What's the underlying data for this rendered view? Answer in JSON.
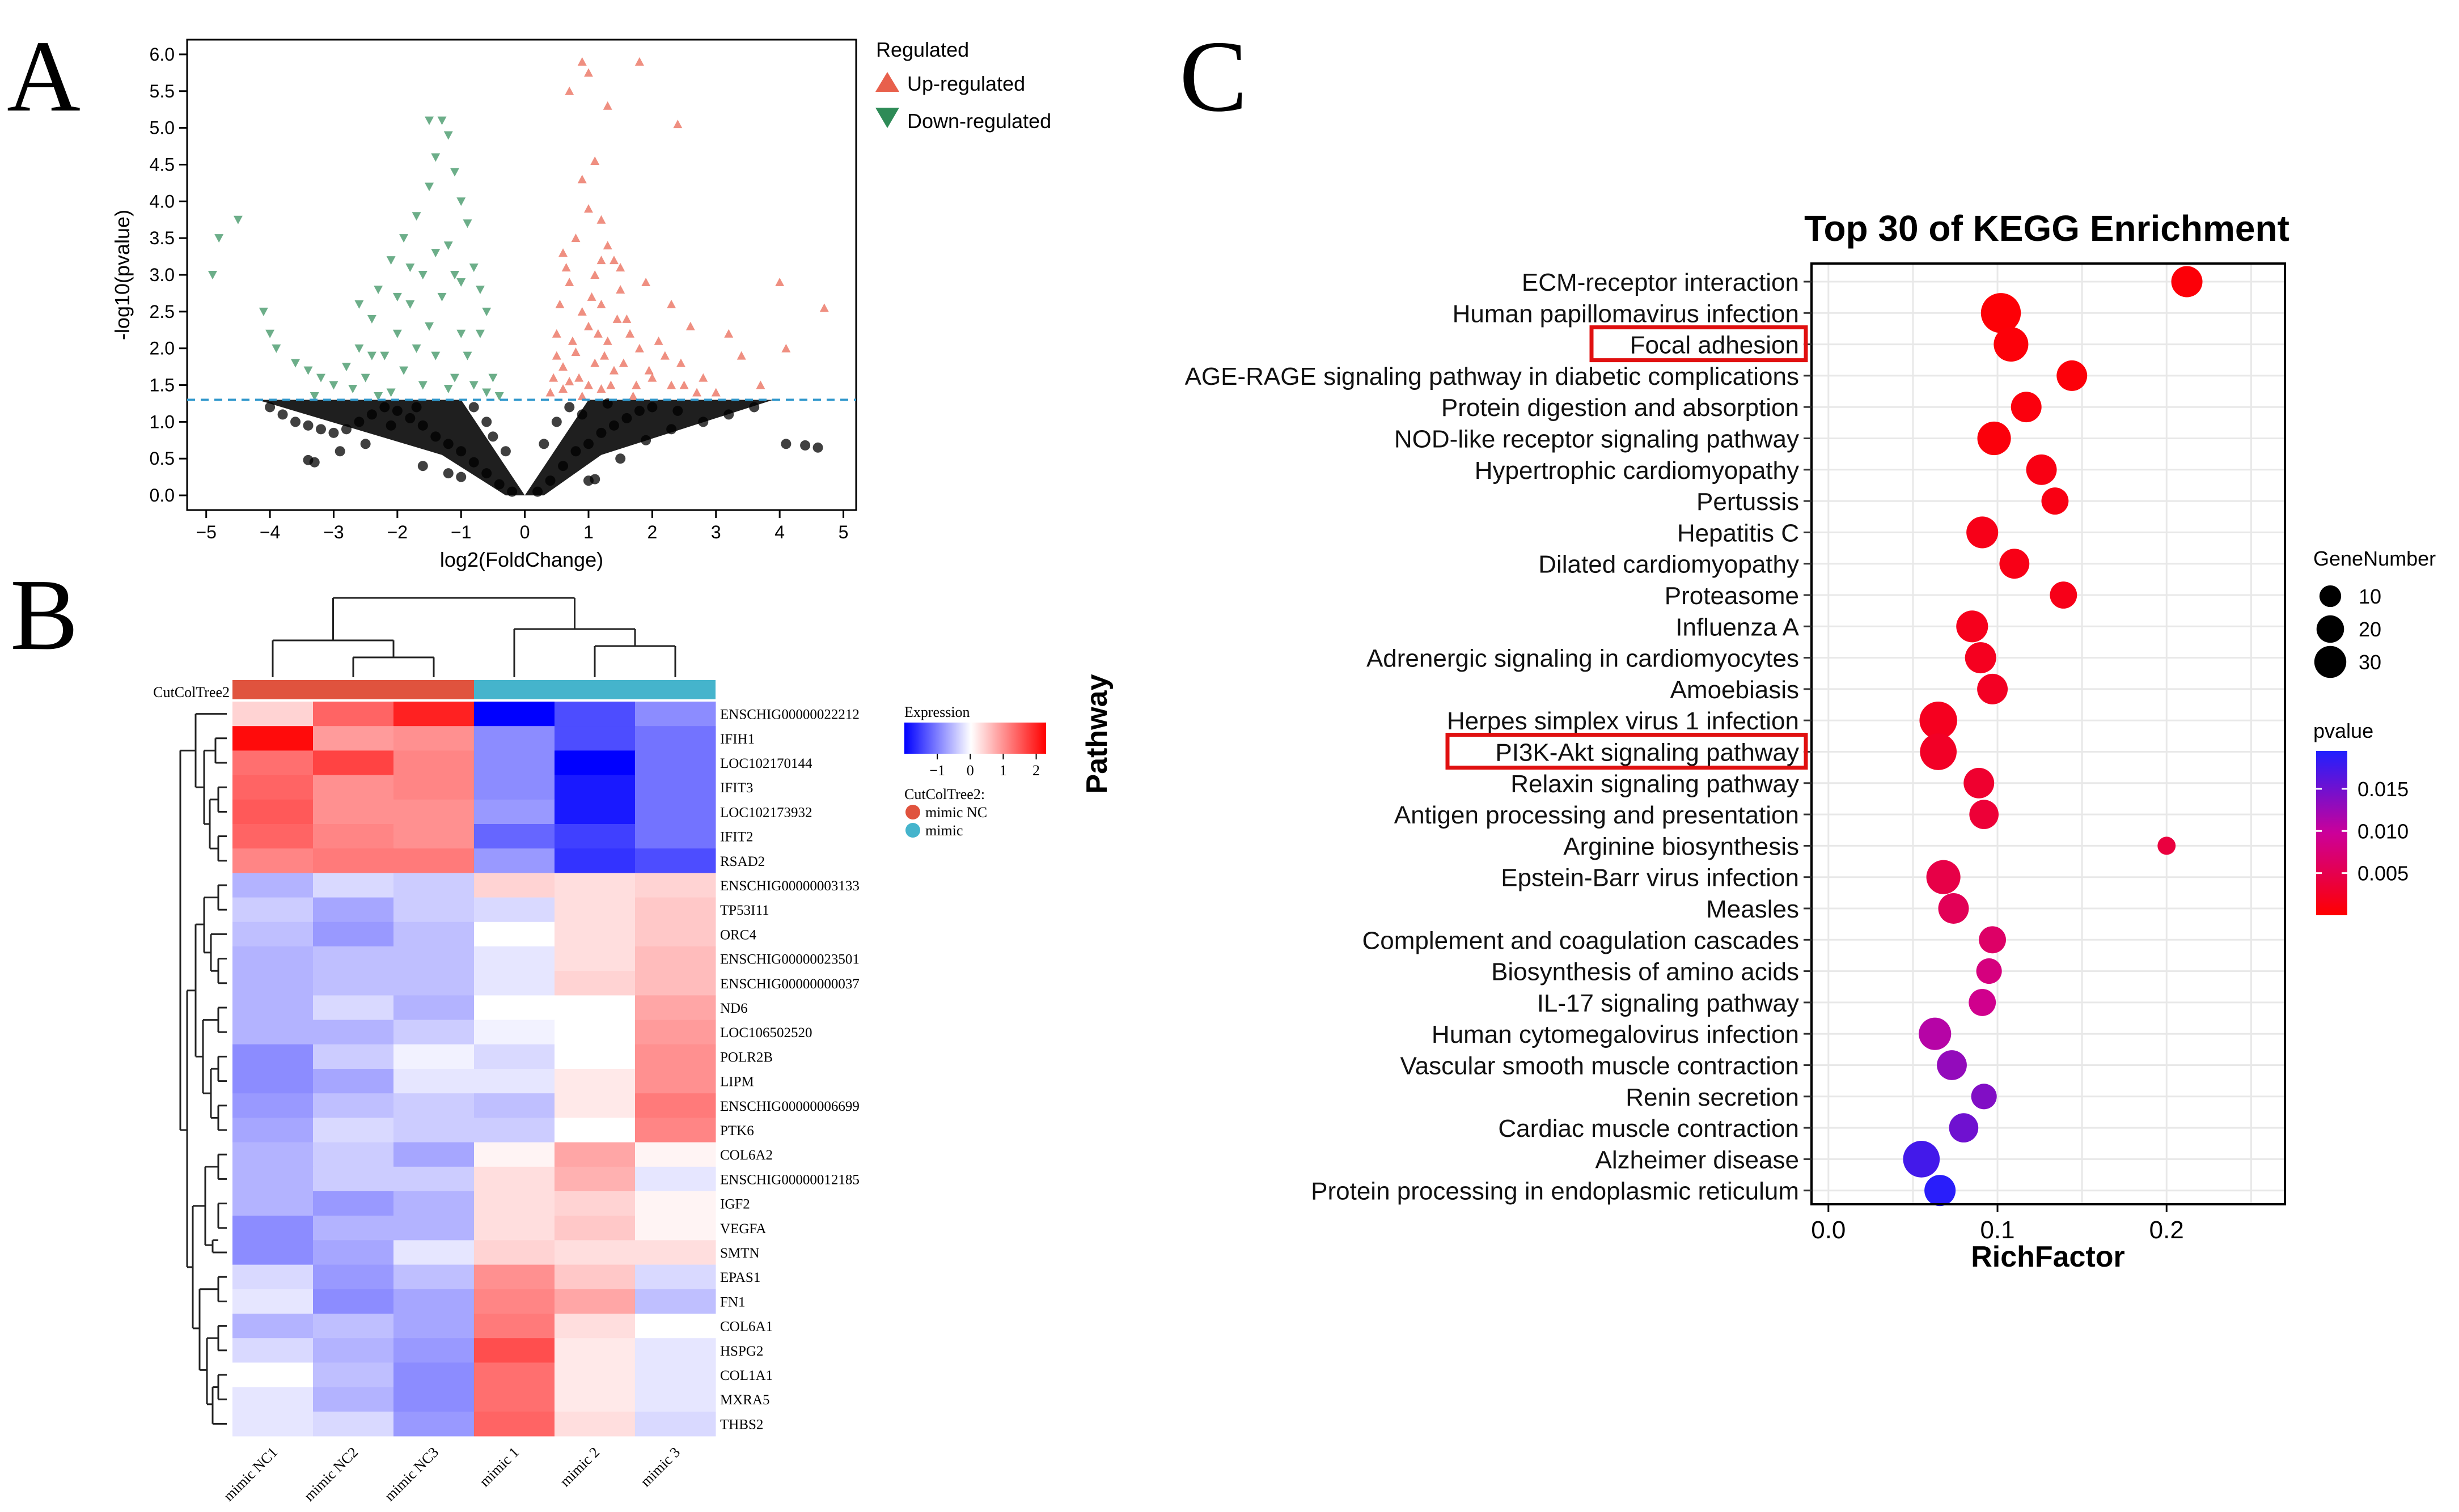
{
  "panel_letters": {
    "a": "A",
    "b": "B",
    "c": "C"
  },
  "chart_data": [
    {
      "id": "volcano",
      "type": "scatter",
      "title": "",
      "xlabel": "log2(FoldChange)",
      "ylabel": "-log10(pvalue)",
      "xlim": [
        -5.3,
        5.2
      ],
      "ylim": [
        -0.2,
        6.2
      ],
      "xticks": [
        -5,
        -4,
        -3,
        -2,
        -1,
        0,
        1,
        2,
        3,
        4,
        5
      ],
      "yticks": [
        0.0,
        0.5,
        1.0,
        1.5,
        2.0,
        2.5,
        3.0,
        3.5,
        4.0,
        4.5,
        5.0,
        5.5,
        6.0
      ],
      "threshold_y": 1.3,
      "legend": {
        "title": "Regulated",
        "items": [
          "Up-regulated",
          "Down-regulated"
        ]
      },
      "colors": {
        "up": "#E8604C",
        "down": "#2E8B57",
        "ns": "#000000",
        "threshold": "#3399CC"
      },
      "up_points": [
        [
          0.9,
          5.9
        ],
        [
          1.8,
          5.9
        ],
        [
          1.0,
          5.75
        ],
        [
          0.7,
          5.5
        ],
        [
          1.3,
          5.3
        ],
        [
          2.4,
          5.05
        ],
        [
          1.1,
          4.55
        ],
        [
          0.9,
          4.3
        ],
        [
          1.0,
          3.9
        ],
        [
          1.2,
          3.75
        ],
        [
          0.8,
          3.5
        ],
        [
          1.3,
          3.4
        ],
        [
          0.6,
          3.3
        ],
        [
          1.4,
          3.2
        ],
        [
          1.1,
          3.0
        ],
        [
          0.7,
          2.9
        ],
        [
          1.5,
          2.8
        ],
        [
          1.2,
          2.6
        ],
        [
          0.9,
          2.5
        ],
        [
          1.6,
          2.4
        ],
        [
          1.0,
          2.3
        ],
        [
          0.5,
          2.2
        ],
        [
          1.3,
          2.1
        ],
        [
          1.8,
          2.0
        ],
        [
          0.8,
          1.95
        ],
        [
          2.2,
          1.9
        ],
        [
          1.1,
          1.8
        ],
        [
          0.6,
          1.75
        ],
        [
          1.4,
          1.7
        ],
        [
          2.0,
          1.6
        ],
        [
          0.7,
          1.55
        ],
        [
          2.5,
          1.5
        ],
        [
          1.2,
          1.45
        ],
        [
          0.4,
          1.4
        ],
        [
          3.0,
          1.4
        ],
        [
          1.7,
          1.35
        ],
        [
          0.9,
          1.35
        ],
        [
          2.8,
          1.6
        ],
        [
          3.4,
          1.9
        ],
        [
          4.0,
          2.9
        ],
        [
          4.7,
          2.55
        ],
        [
          4.1,
          2.0
        ],
        [
          3.7,
          1.5
        ],
        [
          3.2,
          2.2
        ],
        [
          2.6,
          2.3
        ],
        [
          2.3,
          2.6
        ],
        [
          1.9,
          2.9
        ],
        [
          1.5,
          3.1
        ],
        [
          0.55,
          2.6
        ],
        [
          0.65,
          3.1
        ],
        [
          0.75,
          2.1
        ],
        [
          0.85,
          1.6
        ],
        [
          1.05,
          2.7
        ],
        [
          1.15,
          2.2
        ],
        [
          1.25,
          1.9
        ],
        [
          1.35,
          1.5
        ],
        [
          1.45,
          2.4
        ],
        [
          1.55,
          1.8
        ],
        [
          1.65,
          2.2
        ],
        [
          1.75,
          1.5
        ],
        [
          1.95,
          1.7
        ],
        [
          2.1,
          2.1
        ],
        [
          2.3,
          1.5
        ],
        [
          2.45,
          1.8
        ],
        [
          2.7,
          1.4
        ],
        [
          0.45,
          1.6
        ],
        [
          0.5,
          1.9
        ],
        [
          0.6,
          1.45
        ],
        [
          1.0,
          1.5
        ],
        [
          1.2,
          3.2
        ]
      ],
      "down_points": [
        [
          -4.8,
          3.5
        ],
        [
          -4.5,
          3.75
        ],
        [
          -4.9,
          3.0
        ],
        [
          -4.1,
          2.5
        ],
        [
          -4.0,
          2.2
        ],
        [
          -3.9,
          2.0
        ],
        [
          -3.6,
          1.8
        ],
        [
          -3.4,
          1.7
        ],
        [
          -3.2,
          1.6
        ],
        [
          -3.0,
          1.5
        ],
        [
          -2.8,
          1.75
        ],
        [
          -2.6,
          2.0
        ],
        [
          -2.4,
          2.4
        ],
        [
          -2.3,
          2.8
        ],
        [
          -2.1,
          3.2
        ],
        [
          -1.9,
          3.5
        ],
        [
          -1.7,
          3.8
        ],
        [
          -1.5,
          4.2
        ],
        [
          -1.4,
          4.6
        ],
        [
          -1.3,
          5.1
        ],
        [
          -1.5,
          5.1
        ],
        [
          -1.2,
          4.9
        ],
        [
          -1.1,
          4.4
        ],
        [
          -1.0,
          4.0
        ],
        [
          -0.9,
          3.7
        ],
        [
          -1.6,
          3.0
        ],
        [
          -1.8,
          2.6
        ],
        [
          -2.0,
          2.2
        ],
        [
          -2.2,
          1.9
        ],
        [
          -1.2,
          3.4
        ],
        [
          -0.8,
          3.1
        ],
        [
          -0.7,
          2.8
        ],
        [
          -0.6,
          2.5
        ],
        [
          -1.3,
          2.7
        ],
        [
          -1.5,
          2.3
        ],
        [
          -1.7,
          2.0
        ],
        [
          -1.9,
          1.7
        ],
        [
          -2.5,
          1.6
        ],
        [
          -2.7,
          1.45
        ],
        [
          -3.3,
          1.35
        ],
        [
          -1.0,
          2.2
        ],
        [
          -0.9,
          1.9
        ],
        [
          -0.5,
          1.6
        ],
        [
          -1.1,
          1.6
        ],
        [
          -1.4,
          1.9
        ],
        [
          -0.6,
          1.4
        ],
        [
          -0.8,
          1.5
        ],
        [
          -1.2,
          1.45
        ],
        [
          -1.6,
          1.5
        ],
        [
          -2.1,
          1.4
        ],
        [
          -2.3,
          1.35
        ],
        [
          -0.4,
          1.35
        ],
        [
          -1.0,
          2.9
        ],
        [
          -1.4,
          3.3
        ],
        [
          -1.8,
          3.1
        ],
        [
          -2.0,
          2.7
        ],
        [
          -2.4,
          1.9
        ],
        [
          -2.6,
          2.6
        ],
        [
          -1.1,
          3.0
        ],
        [
          -0.7,
          2.2
        ]
      ],
      "ns_points": [
        [
          -3.4,
          0.48
        ],
        [
          -3.3,
          0.45
        ],
        [
          -4.0,
          1.2
        ],
        [
          -3.8,
          1.1
        ],
        [
          -3.6,
          1.0
        ],
        [
          -3.4,
          0.95
        ],
        [
          -3.2,
          0.9
        ],
        [
          -3.0,
          0.85
        ],
        [
          -2.8,
          0.9
        ],
        [
          -2.6,
          1.0
        ],
        [
          -2.4,
          1.1
        ],
        [
          -2.2,
          1.2
        ],
        [
          -2.0,
          1.15
        ],
        [
          -1.8,
          1.05
        ],
        [
          -1.6,
          0.95
        ],
        [
          -1.4,
          0.8
        ],
        [
          -1.2,
          0.7
        ],
        [
          -1.0,
          0.6
        ],
        [
          -0.8,
          0.45
        ],
        [
          -0.6,
          0.3
        ],
        [
          -0.4,
          0.15
        ],
        [
          -0.2,
          0.05
        ],
        [
          0.2,
          0.05
        ],
        [
          0.4,
          0.2
        ],
        [
          0.6,
          0.4
        ],
        [
          0.8,
          0.6
        ],
        [
          1.0,
          0.7
        ],
        [
          1.2,
          0.85
        ],
        [
          1.4,
          0.95
        ],
        [
          1.6,
          1.05
        ],
        [
          1.8,
          1.15
        ],
        [
          2.0,
          1.2
        ],
        [
          2.4,
          1.15
        ],
        [
          2.8,
          1.0
        ],
        [
          3.2,
          1.1
        ],
        [
          3.6,
          1.2
        ],
        [
          4.1,
          0.7
        ],
        [
          4.4,
          0.68
        ],
        [
          4.6,
          0.65
        ],
        [
          1.0,
          0.2
        ],
        [
          1.1,
          0.22
        ],
        [
          -1.2,
          0.3
        ],
        [
          -1.0,
          0.25
        ],
        [
          -2.5,
          0.7
        ],
        [
          -2.9,
          0.6
        ],
        [
          -1.6,
          0.4
        ],
        [
          1.5,
          0.5
        ],
        [
          1.9,
          0.75
        ],
        [
          2.3,
          0.9
        ],
        [
          -2.1,
          0.95
        ],
        [
          -1.7,
          1.2
        ],
        [
          0.9,
          1.1
        ],
        [
          0.7,
          1.2
        ],
        [
          -0.8,
          1.2
        ],
        [
          -0.6,
          1.0
        ],
        [
          -0.3,
          0.6
        ],
        [
          0.3,
          0.7
        ],
        [
          0.5,
          1.0
        ],
        [
          -0.5,
          0.8
        ],
        [
          1.3,
          1.25
        ]
      ]
    },
    {
      "id": "heatmap",
      "type": "heatmap",
      "title": "",
      "columns": [
        "mimic NC1",
        "mimic NC2",
        "mimic NC3",
        "mimic 1",
        "mimic 2",
        "mimic 3"
      ],
      "column_group_title": "CutColTree2",
      "column_groups": [
        "mimic NC",
        "mimic NC",
        "mimic NC",
        "mimic",
        "mimic",
        "mimic"
      ],
      "group_colors": {
        "mimic NC": "#E0533E",
        "mimic": "#45B4CC"
      },
      "legend": {
        "expression_title": "Expression",
        "ticks": [
          -1,
          0,
          1,
          2
        ],
        "tick_labels": [
          "−1",
          "0",
          "1",
          "2"
        ],
        "range": [
          -2,
          2.3
        ],
        "group_title": "CutColTree2:",
        "group_items": [
          "mimic NC",
          "mimic"
        ]
      },
      "rows": [
        "ENSCHIG00000022212",
        "IFIH1",
        "LOC102170144",
        "IFIT3",
        "LOC102173932",
        "IFIT2",
        "RSAD2",
        "ENSCHIG00000003133",
        "TP53I11",
        "ORC4",
        "ENSCHIG00000023501",
        "ENSCHIG00000000037",
        "ND6",
        "LOC106502520",
        "POLR2B",
        "LIPM",
        "ENSCHIG00000006699",
        "PTK6",
        "COL6A2",
        "ENSCHIG00000012185",
        "IGF2",
        "VEGFA",
        "SMTN",
        "EPAS1",
        "FN1",
        "COL6A1",
        "HSPG2",
        "COL1A1",
        "MXRA5",
        "THBS2"
      ],
      "values": [
        [
          0.4,
          1.4,
          2.0,
          -2.0,
          -1.4,
          -0.9
        ],
        [
          2.2,
          0.9,
          1.0,
          -0.9,
          -1.4,
          -1.1
        ],
        [
          1.3,
          1.7,
          1.1,
          -0.9,
          -2.0,
          -1.1
        ],
        [
          1.4,
          1.0,
          1.1,
          -0.9,
          -1.8,
          -1.1
        ],
        [
          1.5,
          1.0,
          1.0,
          -0.8,
          -1.8,
          -1.1
        ],
        [
          1.4,
          1.1,
          1.0,
          -1.2,
          -1.5,
          -1.1
        ],
        [
          1.1,
          1.2,
          1.2,
          -0.8,
          -1.6,
          -1.4
        ],
        [
          -0.6,
          -0.3,
          -0.4,
          0.4,
          0.3,
          0.4
        ],
        [
          -0.4,
          -0.7,
          -0.4,
          -0.3,
          0.3,
          0.5
        ],
        [
          -0.5,
          -0.8,
          -0.5,
          0.0,
          0.3,
          0.5
        ],
        [
          -0.6,
          -0.5,
          -0.5,
          -0.2,
          0.3,
          0.6
        ],
        [
          -0.6,
          -0.5,
          -0.5,
          -0.2,
          0.4,
          0.6
        ],
        [
          -0.6,
          -0.3,
          -0.6,
          0.0,
          0.0,
          0.8
        ],
        [
          -0.6,
          -0.6,
          -0.4,
          -0.1,
          0.0,
          0.9
        ],
        [
          -0.9,
          -0.4,
          -0.1,
          -0.3,
          0.0,
          1.0
        ],
        [
          -0.9,
          -0.7,
          -0.2,
          -0.2,
          0.2,
          1.0
        ],
        [
          -0.8,
          -0.5,
          -0.4,
          -0.5,
          0.2,
          1.2
        ],
        [
          -0.7,
          -0.3,
          -0.4,
          -0.4,
          0.0,
          1.1
        ],
        [
          -0.6,
          -0.4,
          -0.7,
          0.1,
          0.8,
          0.1
        ],
        [
          -0.6,
          -0.4,
          -0.4,
          0.3,
          0.7,
          -0.2
        ],
        [
          -0.6,
          -0.8,
          -0.6,
          0.3,
          0.4,
          0.1
        ],
        [
          -0.9,
          -0.6,
          -0.6,
          0.3,
          0.5,
          0.1
        ],
        [
          -0.9,
          -0.7,
          -0.2,
          0.4,
          0.3,
          0.3
        ],
        [
          -0.3,
          -0.8,
          -0.5,
          1.0,
          0.5,
          -0.3
        ],
        [
          -0.2,
          -0.9,
          -0.7,
          1.1,
          0.8,
          -0.5
        ],
        [
          -0.6,
          -0.5,
          -0.7,
          1.2,
          0.3,
          0.0
        ],
        [
          -0.3,
          -0.6,
          -0.8,
          1.6,
          0.2,
          -0.2
        ],
        [
          0.0,
          -0.5,
          -0.9,
          1.3,
          0.2,
          -0.2
        ],
        [
          -0.2,
          -0.6,
          -0.9,
          1.3,
          0.2,
          -0.2
        ],
        [
          -0.2,
          -0.3,
          -0.8,
          1.4,
          0.3,
          -0.3
        ]
      ]
    },
    {
      "id": "kegg",
      "type": "scatter",
      "title": "Top 30 of KEGG Enrichment",
      "xlabel": "RichFactor",
      "ylabel": "Pathway",
      "xlim": [
        -0.01,
        0.27
      ],
      "xticks": [
        0.0,
        0.1,
        0.2
      ],
      "xtick_labels": [
        "0.0",
        "0.1",
        "0.2"
      ],
      "grid": true,
      "highlighted": [
        "Focal adhesion",
        "PI3K-Akt signaling pathway"
      ],
      "pathways": [
        "ECM-receptor interaction",
        "Human papillomavirus infection",
        "Focal adhesion",
        "AGE-RAGE signaling pathway in diabetic complications",
        "Protein digestion and absorption",
        "NOD-like receptor signaling pathway",
        "Hypertrophic cardiomyopathy",
        "Pertussis",
        "Hepatitis C",
        "Dilated cardiomyopathy",
        "Proteasome",
        "Influenza A",
        "Adrenergic signaling in cardiomyocytes",
        "Amoebiasis",
        "Herpes simplex virus 1 infection",
        "PI3K-Akt signaling pathway",
        "Relaxin signaling pathway",
        "Antigen processing and presentation",
        "Arginine biosynthesis",
        "Epstein-Barr virus infection",
        "Measles",
        "Complement and coagulation cascades",
        "Biosynthesis of amino acids",
        "IL-17 signaling pathway",
        "Human cytomegalovirus infection",
        "Vascular smooth muscle contraction",
        "Renin secretion",
        "Cardiac muscle contraction",
        "Alzheimer disease",
        "Protein processing in endoplasmic reticulum"
      ],
      "rich_factor": [
        0.212,
        0.102,
        0.108,
        0.144,
        0.117,
        0.098,
        0.126,
        0.134,
        0.091,
        0.11,
        0.139,
        0.085,
        0.09,
        0.097,
        0.065,
        0.065,
        0.089,
        0.092,
        0.2,
        0.068,
        0.074,
        0.097,
        0.095,
        0.091,
        0.063,
        0.073,
        0.092,
        0.08,
        0.055,
        0.066
      ],
      "gene_number": [
        18,
        35,
        24,
        17,
        17,
        22,
        17,
        12,
        19,
        16,
        12,
        19,
        18,
        17,
        30,
        28,
        17,
        15,
        3,
        23,
        17,
        12,
        10,
        12,
        20,
        16,
        10,
        15,
        28,
        18
      ],
      "pvalue": [
        0.0005,
        0.0004,
        0.0006,
        0.0006,
        0.0008,
        0.0007,
        0.0012,
        0.0012,
        0.0015,
        0.0014,
        0.0015,
        0.0018,
        0.002,
        0.0022,
        0.002,
        0.0024,
        0.003,
        0.0035,
        0.004,
        0.0045,
        0.0055,
        0.0065,
        0.008,
        0.009,
        0.011,
        0.013,
        0.014,
        0.015,
        0.0175,
        0.019
      ],
      "size_legend": {
        "title": "GeneNumber",
        "values": [
          10,
          20,
          30
        ],
        "labels": [
          "10",
          "20",
          "30"
        ]
      },
      "color_legend": {
        "title": "pvalue",
        "ticks": [
          0.015,
          0.01,
          0.005
        ],
        "labels": [
          "0.015",
          "0.010",
          "0.005"
        ],
        "range": [
          0.0,
          0.0195
        ],
        "low_color": "#FF0000",
        "high_color": "#2020FF"
      }
    }
  ]
}
